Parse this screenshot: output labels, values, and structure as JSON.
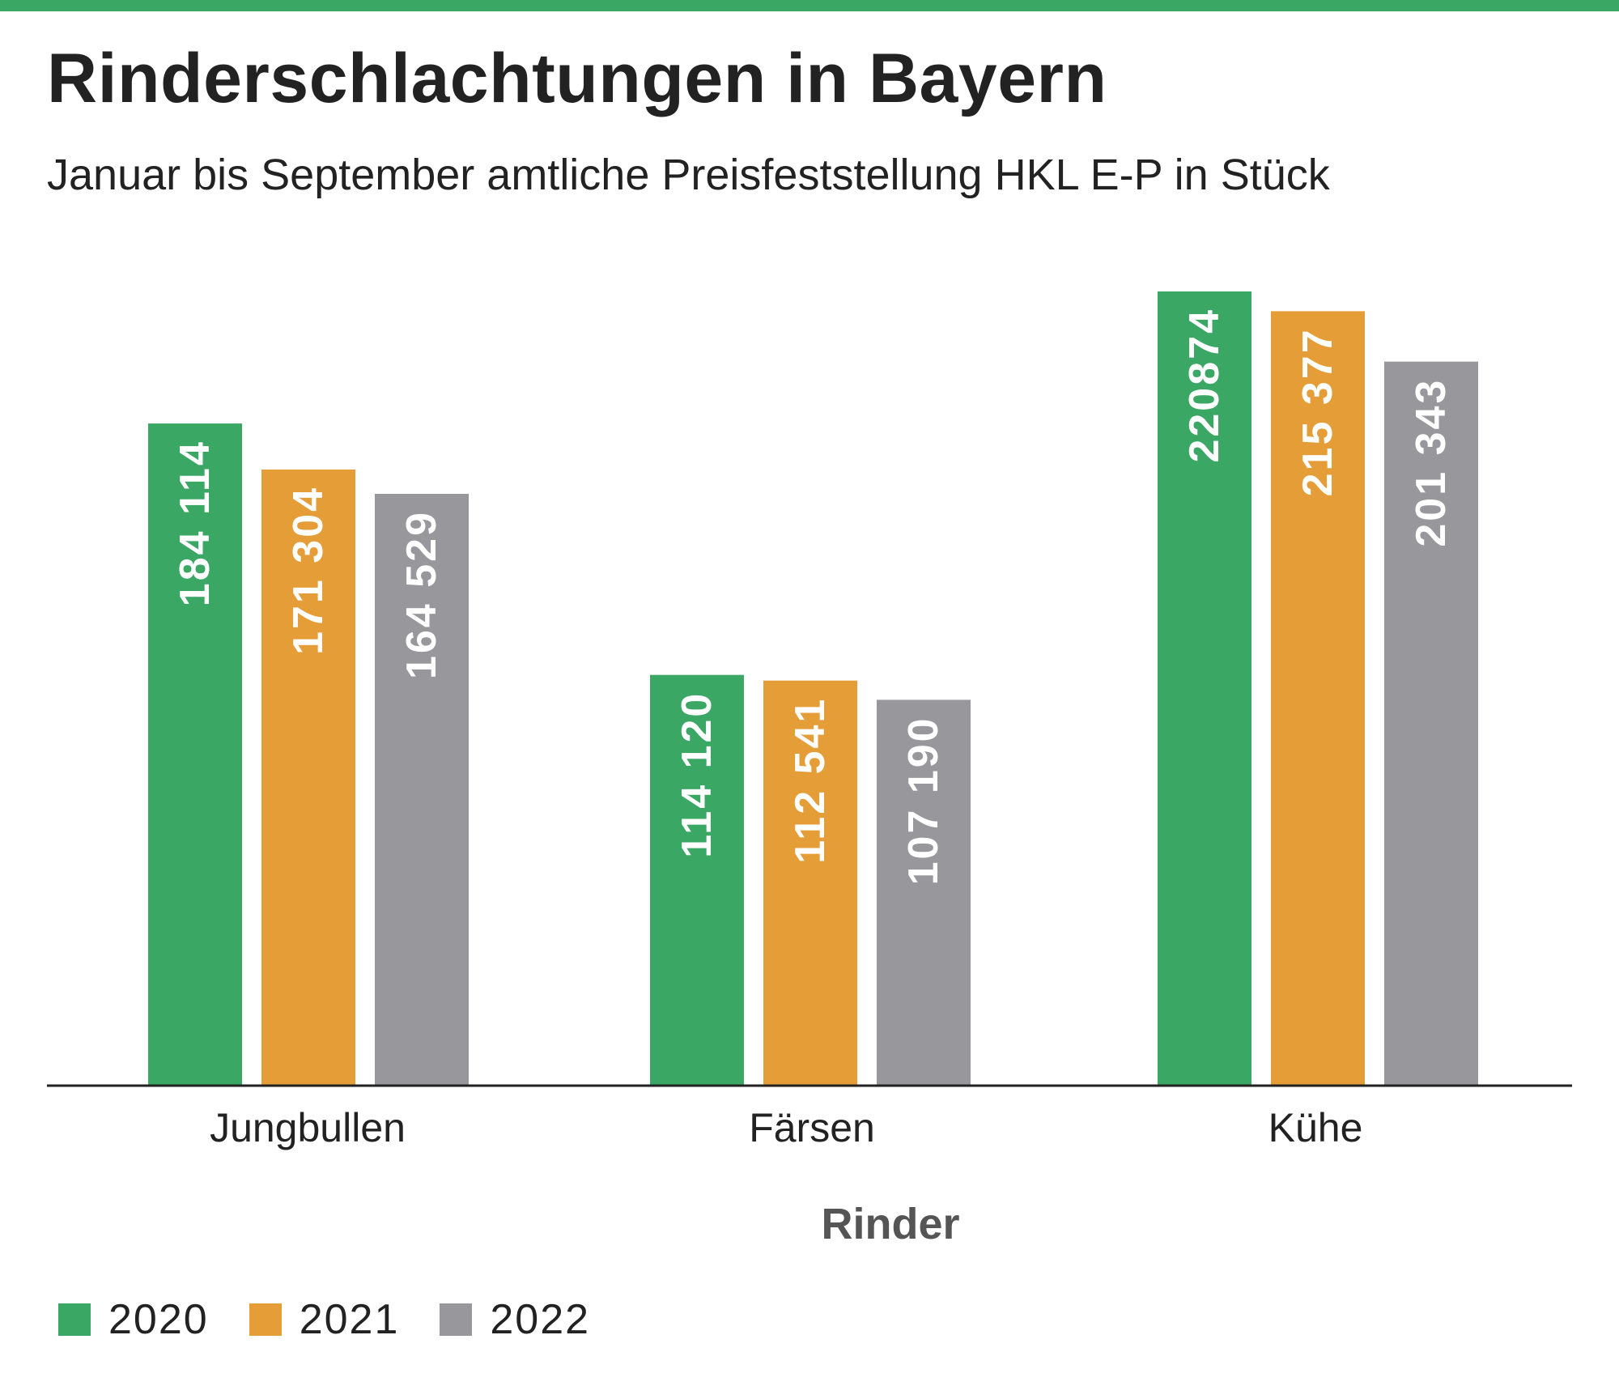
{
  "colors": {
    "rule": "#3aa765",
    "s2020": "#3aa765",
    "s2021": "#e59e37",
    "s2022": "#98989c",
    "axis": "#222222",
    "text": "#222222",
    "xlabel": "#555555"
  },
  "chart_data": {
    "type": "bar",
    "title": "Rinderschlachtungen in Bayern",
    "subtitle": "Januar bis September amtliche Preisfeststellung HKL E-P in Stück",
    "xlabel": "Rinder",
    "ylabel": "",
    "ylim": [
      0,
      240000
    ],
    "grid": false,
    "legend_position": "bottom-left",
    "categories": [
      "Jungbullen",
      "Färsen",
      "Kühe"
    ],
    "series": [
      {
        "name": "2020",
        "values": [
          184114,
          114120,
          220874
        ],
        "labels": [
          "184 114",
          "114 120",
          "220874"
        ]
      },
      {
        "name": "2021",
        "values": [
          171304,
          112541,
          215377
        ],
        "labels": [
          "171 304",
          "112 541",
          "215 377"
        ]
      },
      {
        "name": "2022",
        "values": [
          164529,
          107190,
          201343
        ],
        "labels": [
          "164 529",
          "107 190",
          "201 343"
        ]
      }
    ]
  }
}
